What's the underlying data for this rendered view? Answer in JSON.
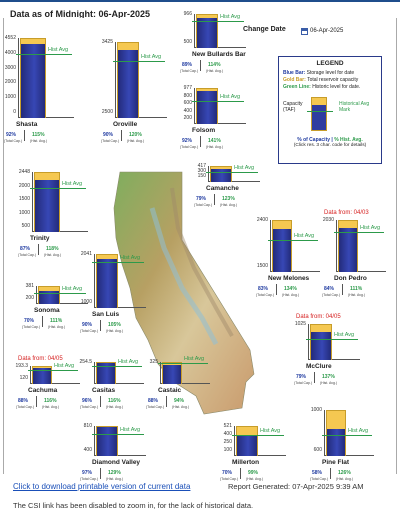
{
  "header": {
    "title": "Data as of Midnight: 06-Apr-2025"
  },
  "change_date": {
    "label": "Change Date",
    "value": "06-Apr-2025"
  },
  "legend": {
    "title": "LEGEND",
    "blue_bar_label": "Blue Bar:",
    "blue_bar_text": "Storage level for date",
    "gold_bar_label": "Gold Bar:",
    "gold_bar_text": "Total reservoir capacity",
    "green_line_label": "Green Line:",
    "green_line_text": "Historic level for date.",
    "capacity_label": "Capacity (TAF)",
    "hist_mark_label": "Historical Avg Mark",
    "pct_capacity": "% of Capacity",
    "pct_hist": "% Hist. Avg.",
    "click_note": "(Click res. 3 char. code for details)"
  },
  "common": {
    "hist_avg": "Hist Avg",
    "total_cap": "(Total Cap.)",
    "hist_avg_sub": "(Hist. Avg.)",
    "data_from_0403": "Data from: 04/03",
    "data_from_0405": "Data from: 04/05"
  },
  "reservoirs": {
    "shasta": {
      "name": "Shasta",
      "capacity": "4552",
      "pct_capacity": "92%",
      "pct_hist": "115%",
      "ticks": [
        "4552",
        "4000",
        "3000",
        "2000",
        "1000",
        "0"
      ],
      "storage_fraction": 0.92,
      "hist_fraction": 0.8
    },
    "oroville": {
      "name": "Oroville",
      "capacity": "3425",
      "pct_capacity": "90%",
      "pct_hist": "120%",
      "ticks": [
        "3425",
        "2500"
      ],
      "storage_fraction": 0.9,
      "hist_fraction": 0.75
    },
    "new_bullards_bar": {
      "name": "New Bullards Bar",
      "capacity": "966",
      "pct_capacity": "89%",
      "pct_hist": "114%",
      "ticks": [
        "966",
        "500"
      ],
      "storage_fraction": 0.89,
      "hist_fraction": 0.78
    },
    "folsom": {
      "name": "Folsom",
      "capacity": "977",
      "pct_capacity": "92%",
      "pct_hist": "141%",
      "ticks": [
        "977",
        "800",
        "600",
        "400",
        "200"
      ],
      "storage_fraction": 0.92,
      "hist_fraction": 0.65
    },
    "camanche": {
      "name": "Camanche",
      "capacity": "417",
      "pct_capacity": "79%",
      "pct_hist": "123%",
      "ticks": [
        "417",
        "300",
        "150"
      ],
      "storage_fraction": 0.79,
      "hist_fraction": 0.64
    },
    "trinity": {
      "name": "Trinity",
      "capacity": "2448",
      "pct_capacity": "87%",
      "pct_hist": "118%",
      "ticks": [
        "2448",
        "2000",
        "1500",
        "1000",
        "500"
      ],
      "storage_fraction": 0.87,
      "hist_fraction": 0.74
    },
    "new_melones": {
      "name": "New Melones",
      "capacity": "2400",
      "pct_capacity": "83%",
      "pct_hist": "134%",
      "ticks": [
        "2400",
        "1500"
      ],
      "storage_fraction": 0.83,
      "hist_fraction": 0.62
    },
    "don_pedro": {
      "name": "Don Pedro",
      "capacity": "2030",
      "pct_capacity": "84%",
      "pct_hist": "111%",
      "ticks": [
        "2030"
      ],
      "storage_fraction": 0.84,
      "hist_fraction": 0.76
    },
    "sonoma": {
      "name": "Sonoma",
      "capacity": "381",
      "pct_capacity": "70%",
      "pct_hist": "111%",
      "ticks": [
        "381",
        "200"
      ],
      "storage_fraction": 0.7,
      "hist_fraction": 0.63
    },
    "san_luis": {
      "name": "San Luis",
      "capacity": "2041",
      "pct_capacity": "90%",
      "pct_hist": "105%",
      "ticks": [
        "2041",
        "1000"
      ],
      "storage_fraction": 0.9,
      "hist_fraction": 0.86
    },
    "mcclure": {
      "name": "McClure",
      "capacity": "1025",
      "pct_capacity": "79%",
      "pct_hist": "137%",
      "ticks": [
        "1025"
      ],
      "storage_fraction": 0.79,
      "hist_fraction": 0.58
    },
    "cachuma": {
      "name": "Cachuma",
      "capacity": "193.3",
      "pct_capacity": "88%",
      "pct_hist": "116%",
      "ticks": [
        "193.3",
        "120"
      ],
      "storage_fraction": 0.88,
      "hist_fraction": 0.76
    },
    "casitas": {
      "name": "Casitas",
      "capacity": "254.5",
      "pct_capacity": "96%",
      "pct_hist": "116%",
      "ticks": [
        "254.5"
      ],
      "storage_fraction": 0.96,
      "hist_fraction": 0.83
    },
    "castaic": {
      "name": "Castaic",
      "capacity": "325",
      "pct_capacity": "88%",
      "pct_hist": "94%",
      "ticks": [
        "325"
      ],
      "storage_fraction": 0.88,
      "hist_fraction": 0.94
    },
    "diamond_valley": {
      "name": "Diamond Valley",
      "capacity": "810",
      "pct_capacity": "97%",
      "pct_hist": "129%",
      "ticks": [
        "810",
        "400"
      ],
      "storage_fraction": 0.97,
      "hist_fraction": 0.75
    },
    "millerton": {
      "name": "Millerton",
      "capacity": "521",
      "pct_capacity": "70%",
      "pct_hist": "99%",
      "ticks": [
        "521",
        "400",
        "250",
        "100"
      ],
      "storage_fraction": 0.7,
      "hist_fraction": 0.71
    },
    "pine_flat": {
      "name": "Pine Flat",
      "capacity": "1000",
      "pct_capacity": "58%",
      "pct_hist": "126%",
      "ticks": [
        "1000",
        "600"
      ],
      "storage_fraction": 0.58,
      "hist_fraction": 0.46
    }
  },
  "footer": {
    "download_link": "Click to download printable version of current data",
    "report_generated": "Report Generated: 07-Apr-2025 9:39 AM",
    "csi_note": "The CSI link has been disabled to zoom in, for the lack of historical data."
  },
  "colors": {
    "storage_bar": "#2f3ca0",
    "capacity_bar": "#f5c851",
    "historic_line": "#2c9a4a",
    "notice_red": "#d62020",
    "link_blue": "#1a4fb8"
  },
  "icons": {
    "calendar": "calendar-icon"
  }
}
